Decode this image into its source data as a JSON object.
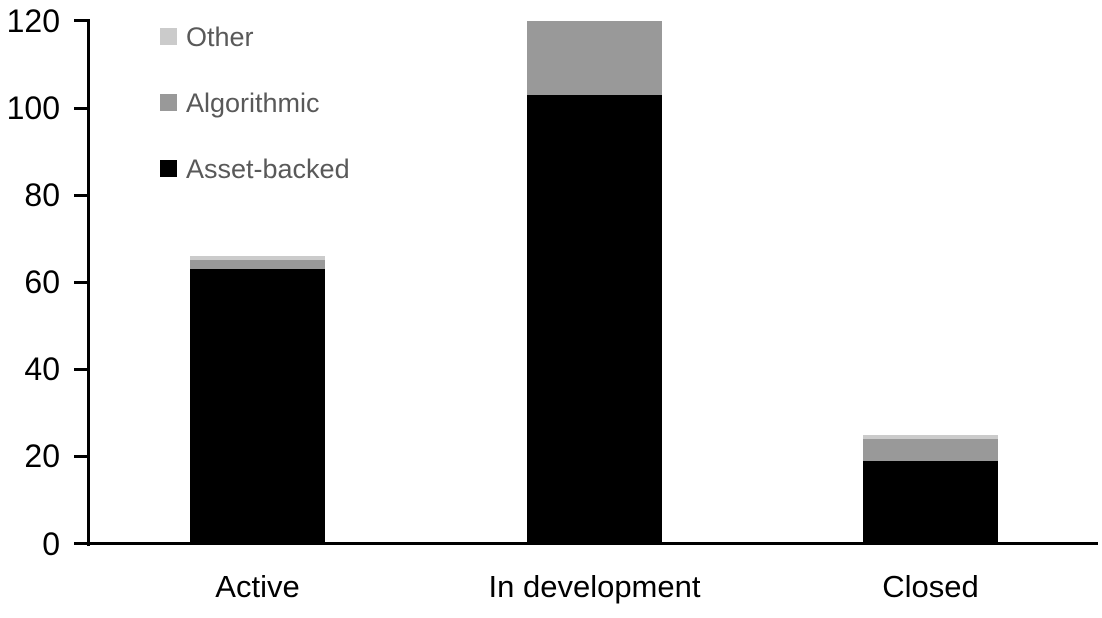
{
  "chart_data": {
    "type": "bar",
    "stacked": true,
    "title": "",
    "xlabel": "",
    "ylabel": "",
    "categories": [
      "Active",
      "In development",
      "Closed"
    ],
    "series": [
      {
        "name": "Asset-backed",
        "color": "#000000",
        "values": [
          63,
          103,
          19
        ]
      },
      {
        "name": "Algorithmic",
        "color": "#999999",
        "values": [
          2,
          17,
          5
        ]
      },
      {
        "name": "Other",
        "color": "#cbcbcb",
        "values": [
          1,
          0,
          1
        ]
      }
    ],
    "totals": [
      66,
      120,
      25
    ],
    "ylim": [
      0,
      120
    ],
    "yticks": [
      0,
      20,
      40,
      60,
      80,
      100,
      120
    ],
    "grid": false,
    "legend": {
      "position": "top-left",
      "entries_top_to_bottom": [
        "Other",
        "Algorithmic",
        "Asset-backed"
      ]
    },
    "colors": {
      "axis_line": "#000000",
      "axis_text": "#000000",
      "legend_text": "#595959",
      "background": "#ffffff"
    }
  }
}
